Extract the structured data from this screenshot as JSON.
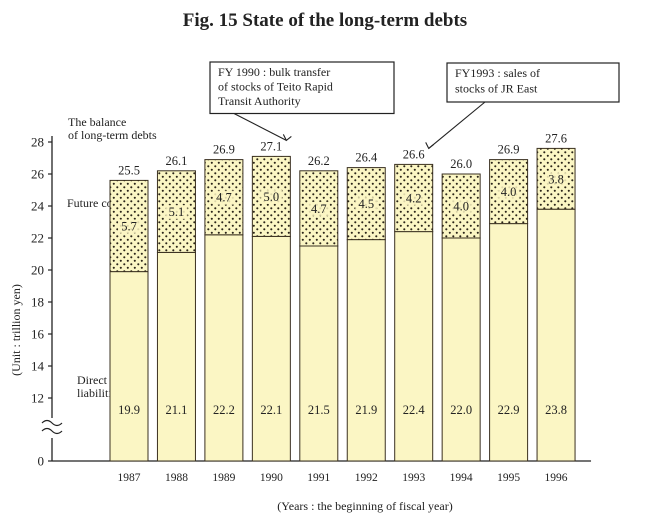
{
  "chart_data": {
    "type": "bar",
    "stacked": true,
    "title": "Fig. 15 State of the long-term debts",
    "xlabel": "(Years : the beginning of fiscal year)",
    "ylabel": "(Unit : trillion yen)",
    "categories": [
      "1987",
      "1988",
      "1989",
      "1990",
      "1991",
      "1992",
      "1993",
      "1994",
      "1995",
      "1996"
    ],
    "series": [
      {
        "name": "Direct liabilities",
        "values": [
          19.9,
          21.1,
          22.2,
          22.1,
          21.5,
          21.9,
          22.4,
          22.0,
          22.9,
          23.8
        ],
        "labels": [
          "19.9",
          "21.1",
          "22.2",
          "22.1",
          "21.5",
          "21.9",
          "22.4",
          "22.0",
          "22.9",
          "23.8"
        ]
      },
      {
        "name": "Future cost",
        "values": [
          5.7,
          5.1,
          4.7,
          5.0,
          4.7,
          4.5,
          4.2,
          4.0,
          4.0,
          3.8
        ],
        "labels": [
          "5.7",
          "5.1",
          "4.7",
          "5.0",
          "4.7",
          "4.5",
          "4.2",
          "4.0",
          "4.0",
          "3.8"
        ]
      }
    ],
    "totals": [
      "25.5",
      "26.1",
      "26.9",
      "27.1",
      "26.2",
      "26.4",
      "26.6",
      "26.0",
      "26.9",
      "27.6"
    ],
    "yticks": [
      12,
      14,
      16,
      18,
      20,
      22,
      24,
      26,
      28
    ],
    "ylim": [
      0,
      28
    ],
    "broken_axis": true,
    "axis_zero_label": "0",
    "grid": false,
    "legend_labels": {
      "balance": "The balance of long-term debts",
      "future": "Future cost",
      "direct": "Direct liabilities"
    },
    "annotations": [
      {
        "text": [
          "FY 1990 : bulk transfer",
          "of stocks of Teito Rapid",
          "Transit Authority"
        ],
        "points_to": "1990"
      },
      {
        "text": [
          "FY1993 : sales of",
          "stocks of JR East"
        ],
        "points_to": "1993"
      }
    ],
    "colors": {
      "direct": "#fbf6c4",
      "future_base": "#fbf6c4",
      "dots": "#2a2418",
      "outline": "#3a3020"
    }
  }
}
